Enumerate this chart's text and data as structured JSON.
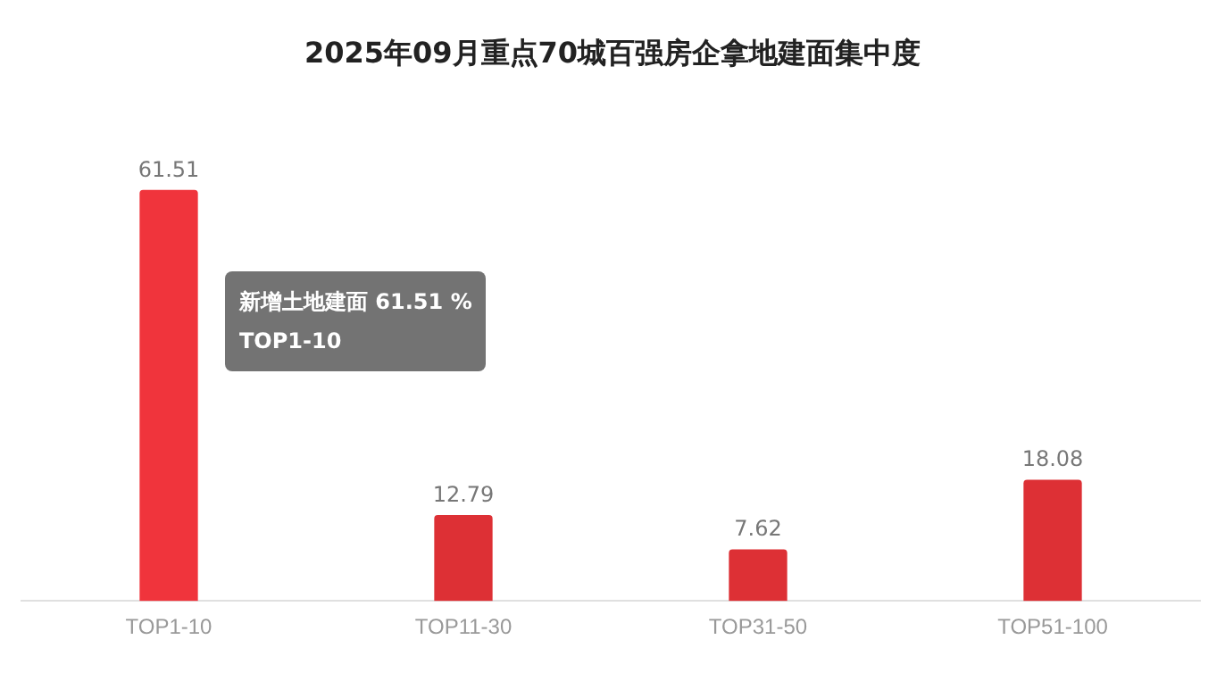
{
  "chart_data": {
    "type": "bar",
    "title": "2025年09月重点70城百强房企拿地建面集中度",
    "categories": [
      "TOP1-10",
      "TOP11-30",
      "TOP31-50",
      "TOP51-100"
    ],
    "series": [
      {
        "colors": [
          "#f0343c",
          "#dd3035",
          "#dd3035",
          "#dd3035"
        ],
        "values": [
          61.51,
          12.79,
          7.62,
          18.08
        ]
      }
    ],
    "data_labels": true,
    "grid": false,
    "legend": false,
    "tick_labels": "x",
    "annotations": [
      "新增土地建面 61.51 %",
      "TOP1-10"
    ]
  }
}
